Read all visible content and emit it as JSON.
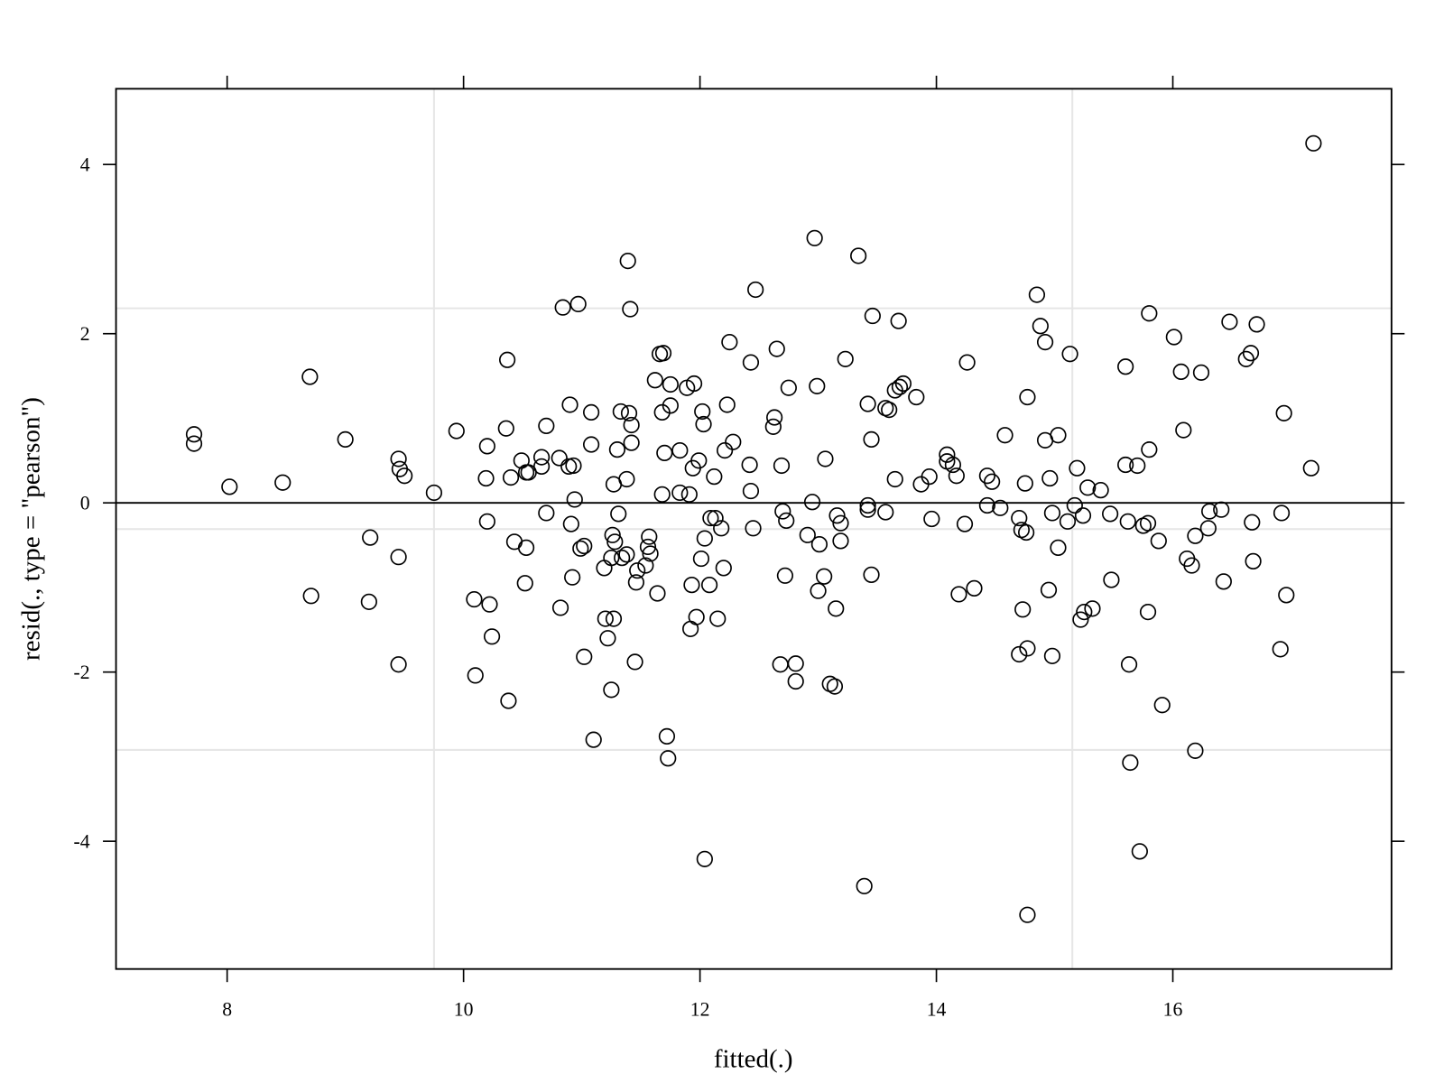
{
  "chart_data": {
    "type": "scatter",
    "xlabel": "fitted(.)",
    "ylabel": "resid(., type = \"pearson\")",
    "xlim": [
      7.06,
      17.85
    ],
    "ylim": [
      -5.51,
      4.895
    ],
    "xticks": [
      8,
      10,
      12,
      14,
      16
    ],
    "yticks": [
      -4,
      -2,
      0,
      2,
      4
    ],
    "zero_line": 0,
    "ref_vlines": [
      9.75,
      15.15
    ],
    "ref_hlines": [
      2.3,
      -0.31,
      -2.92
    ],
    "color": "#000000",
    "x": [
      7.72,
      7.72,
      8.02,
      8.47,
      8.7,
      8.71,
      9.0,
      9.21,
      9.2,
      9.45,
      9.46,
      9.5,
      9.45,
      9.45,
      9.75,
      9.94,
      10.09,
      10.1,
      10.2,
      10.19,
      10.2,
      10.22,
      10.24,
      10.37,
      10.36,
      10.4,
      10.38,
      10.43,
      10.49,
      10.53,
      10.55,
      10.53,
      10.52,
      10.66,
      10.66,
      10.7,
      10.7,
      10.81,
      10.82,
      10.84,
      10.97,
      10.9,
      10.89,
      10.93,
      10.94,
      10.91,
      10.92,
      10.99,
      11.02,
      11.02,
      11.08,
      11.08,
      11.1,
      11.19,
      11.2,
      11.22,
      11.25,
      11.25,
      11.26,
      11.27,
      11.28,
      11.27,
      11.3,
      11.31,
      11.33,
      11.34,
      11.38,
      11.38,
      11.39,
      11.41,
      11.4,
      11.42,
      11.42,
      11.45,
      11.46,
      11.47,
      11.54,
      11.56,
      11.57,
      11.58,
      11.62,
      11.64,
      11.66,
      11.69,
      11.68,
      11.68,
      11.7,
      11.72,
      11.73,
      11.75,
      11.75,
      11.83,
      11.83,
      11.89,
      11.91,
      11.95,
      11.94,
      11.93,
      11.92,
      11.97,
      11.99,
      12.01,
      12.02,
      12.03,
      12.04,
      12.04,
      12.08,
      12.09,
      12.13,
      12.12,
      12.15,
      12.18,
      12.2,
      12.21,
      12.23,
      12.25,
      12.28,
      12.43,
      12.42,
      12.43,
      12.45,
      12.47,
      12.62,
      12.63,
      12.65,
      12.68,
      12.69,
      12.7,
      12.73,
      12.72,
      12.75,
      12.81,
      12.81,
      12.91,
      12.95,
      12.97,
      12.99,
      13.0,
      13.01,
      13.06,
      13.05,
      13.1,
      13.14,
      13.15,
      13.16,
      13.19,
      13.19,
      13.23,
      13.34,
      13.39,
      13.42,
      13.42,
      13.42,
      13.45,
      13.45,
      13.46,
      13.57,
      13.57,
      13.6,
      13.65,
      13.65,
      13.68,
      13.69,
      13.72,
      13.83,
      13.87,
      13.94,
      13.96,
      14.09,
      14.09,
      14.14,
      14.17,
      14.19,
      14.24,
      14.26,
      14.32,
      14.43,
      14.43,
      14.47,
      14.54,
      14.58,
      14.7,
      14.7,
      14.72,
      14.73,
      14.75,
      14.76,
      14.77,
      14.77,
      14.77,
      14.85,
      14.88,
      14.92,
      14.92,
      14.95,
      14.96,
      14.98,
      14.98,
      15.03,
      15.03,
      15.11,
      15.13,
      15.17,
      15.19,
      15.22,
      15.24,
      15.25,
      15.28,
      15.32,
      15.39,
      15.47,
      15.48,
      15.6,
      15.6,
      15.62,
      15.63,
      15.64,
      15.7,
      15.72,
      15.75,
      15.79,
      15.79,
      15.8,
      15.8,
      15.88,
      15.91,
      16.01,
      16.07,
      16.09,
      16.12,
      16.16,
      16.19,
      16.19,
      16.24,
      16.3,
      16.31,
      16.41,
      16.43,
      16.48,
      16.62,
      16.66,
      16.67,
      16.68,
      16.71,
      16.91,
      16.94,
      16.96,
      16.92,
      17.17,
      17.19
    ],
    "values": [
      0.81,
      0.7,
      0.19,
      0.24,
      1.49,
      -1.1,
      0.75,
      -0.41,
      -1.17,
      0.52,
      0.4,
      0.32,
      -0.64,
      -1.91,
      0.12,
      0.85,
      -1.14,
      -2.04,
      0.67,
      0.29,
      -0.22,
      -1.2,
      -1.58,
      1.69,
      0.88,
      0.3,
      -2.34,
      -0.46,
      0.5,
      0.36,
      0.36,
      -0.53,
      -0.95,
      0.54,
      0.43,
      0.91,
      -0.12,
      0.53,
      -1.24,
      2.31,
      2.35,
      1.16,
      0.43,
      0.44,
      0.04,
      -0.25,
      -0.88,
      -0.54,
      -0.51,
      -1.82,
      1.07,
      0.69,
      -2.8,
      -0.77,
      -1.37,
      -1.6,
      -2.21,
      -0.65,
      -0.38,
      0.22,
      -0.46,
      -1.37,
      0.63,
      -0.13,
      1.08,
      -0.65,
      -0.61,
      0.28,
      2.86,
      2.29,
      1.06,
      0.92,
      0.71,
      -1.88,
      -0.94,
      -0.8,
      -0.74,
      -0.52,
      -0.4,
      -0.6,
      1.45,
      -1.07,
      1.76,
      1.77,
      0.1,
      1.07,
      0.59,
      -2.76,
      -3.02,
      1.4,
      1.15,
      0.62,
      0.12,
      1.36,
      0.1,
      1.41,
      0.41,
      -0.97,
      -1.49,
      -1.35,
      0.5,
      -0.66,
      1.08,
      0.93,
      -0.42,
      -4.21,
      -0.97,
      -0.18,
      -0.18,
      0.31,
      -1.37,
      -0.3,
      -0.77,
      0.62,
      1.16,
      1.9,
      0.72,
      1.66,
      0.45,
      0.14,
      -0.3,
      2.52,
      0.9,
      1.01,
      1.82,
      -1.91,
      0.44,
      -0.1,
      -0.21,
      -0.86,
      1.36,
      -1.9,
      -2.11,
      -0.38,
      0.01,
      3.13,
      1.38,
      -1.04,
      -0.49,
      0.52,
      -0.87,
      -2.14,
      -2.17,
      -1.25,
      -0.15,
      -0.24,
      -0.45,
      1.7,
      2.92,
      -4.53,
      1.17,
      -0.03,
      -0.08,
      0.75,
      -0.85,
      2.21,
      -0.11,
      1.12,
      1.1,
      0.28,
      1.33,
      2.15,
      1.37,
      1.41,
      1.25,
      0.22,
      0.31,
      -0.19,
      0.57,
      0.49,
      0.45,
      0.32,
      -1.08,
      -0.25,
      1.66,
      -1.01,
      -0.03,
      0.32,
      0.25,
      -0.06,
      0.8,
      -0.18,
      -1.79,
      -0.32,
      -1.26,
      0.23,
      -0.35,
      -1.72,
      1.25,
      -4.87,
      2.46,
      2.09,
      0.74,
      1.9,
      -1.03,
      0.29,
      -0.12,
      -1.81,
      0.8,
      -0.53,
      -0.22,
      1.76,
      -0.03,
      0.41,
      -1.38,
      -0.15,
      -1.29,
      0.18,
      -1.25,
      0.15,
      -0.13,
      -0.91,
      1.61,
      0.45,
      -0.22,
      -1.91,
      -3.07,
      0.44,
      -4.12,
      -0.27,
      -0.24,
      -1.29,
      2.24,
      0.63,
      -0.45,
      -2.39,
      1.96,
      1.55,
      0.86,
      -0.66,
      -0.74,
      -0.39,
      -2.93,
      1.54,
      -0.3,
      -0.1,
      -0.08,
      -0.93,
      2.14,
      1.7,
      1.77,
      -0.23,
      -0.69,
      2.11,
      -1.73,
      1.06,
      -1.09,
      -0.12,
      0.41,
      4.25
    ]
  }
}
